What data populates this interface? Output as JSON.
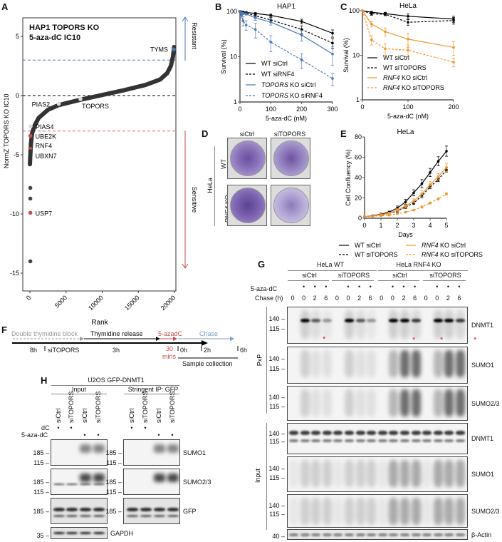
{
  "panels": {
    "A": "A",
    "B": "B",
    "C": "C",
    "D": "D",
    "E": "E",
    "F": "F",
    "G": "G",
    "H": "H"
  },
  "chart_data": [
    {
      "id": "A",
      "type": "scatter",
      "title_line1": "HAP1 TOPORS KO",
      "title_line1_italic": "TOPORS",
      "title_line2": "5-aza-dC IC10",
      "xlabel": "Rank",
      "ylabel": "NormZ TOPORS KO IC10",
      "xlim": [
        0,
        20000
      ],
      "ylim": [
        -16,
        6.5
      ],
      "xticks": [
        "0",
        "5000",
        "10000",
        "15000",
        "20000"
      ],
      "yticks": [
        "5",
        "0",
        "-5",
        "-10",
        "-15"
      ],
      "thresholds": {
        "resistant": 3,
        "sensitive": -3,
        "zero": 0
      },
      "arrows": {
        "resistant": "Resistant",
        "sensitive": "Sensitive"
      },
      "curve": [
        [
          0,
          -5.8
        ],
        [
          60,
          -5
        ],
        [
          150,
          -4
        ],
        [
          300,
          -3.2
        ],
        [
          600,
          -2.6
        ],
        [
          1200,
          -1.9
        ],
        [
          2500,
          -1.2
        ],
        [
          4000,
          -0.8
        ],
        [
          7000,
          -0.35
        ],
        [
          10000,
          0.05
        ],
        [
          13000,
          0.45
        ],
        [
          16000,
          0.9
        ],
        [
          18000,
          1.35
        ],
        [
          19000,
          1.9
        ],
        [
          19500,
          2.5
        ],
        [
          19800,
          3.3
        ],
        [
          19950,
          4.1
        ]
      ],
      "outliers": [
        [
          60,
          -7.8
        ],
        [
          60,
          -8.7
        ],
        [
          60,
          -14.0
        ]
      ],
      "labeled_genes": [
        {
          "gene": "TYMS",
          "rank": 19900,
          "value": 3.9,
          "color": "#4a78b5"
        },
        {
          "gene": "PIAS2",
          "rank": 4000,
          "value": -0.7,
          "color": "#dddddd"
        },
        {
          "gene": "TOPORS",
          "rank": 7000,
          "value": -0.3,
          "color": "#dddddd"
        },
        {
          "gene": "PIAS4",
          "rank": 100,
          "value": -2.6,
          "color": "#dddddd"
        },
        {
          "gene": "UBE2K",
          "rank": 60,
          "value": -3.4,
          "color": "#c0504d"
        },
        {
          "gene": "RNF4",
          "rank": 60,
          "value": -4.5,
          "color": "#c0504d"
        },
        {
          "gene": "UBXN7",
          "rank": 60,
          "value": -4.7,
          "color": "#333333"
        },
        {
          "gene": "USP7",
          "rank": 60,
          "value": -9.9,
          "color": "#c0504d"
        }
      ]
    },
    {
      "id": "B",
      "type": "line",
      "title": "HAP1",
      "xlabel": "5-aza-dC (nM)",
      "ylabel": "Survival (%)",
      "yscale": "log",
      "xlim": [
        0,
        300
      ],
      "ylim": [
        1,
        100
      ],
      "xticks": [
        "0",
        "100",
        "200",
        "300"
      ],
      "yticks": [
        "100",
        "10",
        "1"
      ],
      "x": [
        0,
        5,
        10,
        20,
        50,
        100,
        200,
        300
      ],
      "series": [
        {
          "name": "WT siCtrl",
          "color": "#000000",
          "dashed": false,
          "values": [
            100,
            98,
            97,
            95,
            90,
            82,
            60,
            33
          ],
          "err": [
            2,
            2,
            3,
            3,
            4,
            5,
            7,
            6
          ]
        },
        {
          "name": "WT siRNF4",
          "color": "#000000",
          "dashed": true,
          "values": [
            100,
            96,
            94,
            92,
            80,
            65,
            40,
            20
          ],
          "err": [
            2,
            3,
            3,
            4,
            6,
            8,
            8,
            5
          ]
        },
        {
          "name": "TOPORS KO siCtrl",
          "italic": "TOPORS",
          "color": "#4a78b5",
          "dashed": false,
          "values": [
            100,
            93,
            90,
            88,
            72,
            58,
            30,
            11.5
          ],
          "err": [
            3,
            4,
            5,
            5,
            8,
            8,
            8,
            5
          ]
        },
        {
          "name": "TOPORS KO siRNF4",
          "italic": "TOPORS",
          "color": "#4a78b5",
          "dashed": true,
          "values": [
            100,
            82,
            62,
            50,
            40,
            21,
            8.5,
            3.3
          ],
          "err": [
            4,
            10,
            14,
            12,
            14,
            8,
            3,
            1
          ]
        }
      ]
    },
    {
      "id": "C",
      "type": "line",
      "title": "HeLa",
      "xlabel": "5-aza-dC (nM)",
      "ylabel": "Survival (%)",
      "yscale": "log",
      "xlim": [
        0,
        200
      ],
      "ylim": [
        1,
        100
      ],
      "xticks": [
        "0",
        "100",
        "200"
      ],
      "yticks": [
        "100",
        "10",
        "1"
      ],
      "x": [
        0,
        20,
        50,
        100,
        200
      ],
      "series": [
        {
          "name": "WT siCtrl",
          "color": "#000000",
          "dashed": false,
          "values": [
            100,
            92,
            86,
            75,
            65
          ],
          "err": [
            2,
            5,
            6,
            10,
            10
          ]
        },
        {
          "name": "WT siTOPORS",
          "color": "#000000",
          "dashed": true,
          "values": [
            100,
            85,
            83,
            55,
            60
          ],
          "err": [
            2,
            6,
            6,
            8,
            10
          ]
        },
        {
          "name": "RNF4 KO siCtrl",
          "italic": "RNF4",
          "color": "#f0962e",
          "dashed": false,
          "values": [
            100,
            50,
            34,
            23,
            15
          ],
          "err": [
            2,
            7,
            7,
            8,
            5
          ]
        },
        {
          "name": "RNF4 KO siTOPORS",
          "italic": "RNF4",
          "color": "#f0962e",
          "dashed": true,
          "values": [
            100,
            22,
            14,
            13,
            7
          ],
          "err": [
            2,
            5,
            4,
            4,
            1.5
          ]
        }
      ]
    },
    {
      "id": "E",
      "type": "line",
      "title": "HeLa",
      "xlabel": "Days",
      "ylabel": "Cell Confluency (%)",
      "xlim": [
        0,
        5
      ],
      "ylim": [
        0,
        80
      ],
      "xticks": [
        "0",
        "1",
        "2",
        "3",
        "4",
        "5"
      ],
      "yticks": [
        "0",
        "20",
        "40",
        "60",
        "80"
      ],
      "x": [
        0,
        0.5,
        1,
        1.5,
        2,
        2.5,
        3,
        3.5,
        4,
        4.5,
        5
      ],
      "series": [
        {
          "name": "WT siCtrl",
          "color": "#000000",
          "dashed": false,
          "values": [
            1.5,
            2.5,
            4,
            6,
            10,
            16,
            25,
            34,
            45,
            56,
            66
          ],
          "err": [
            0.5,
            0.5,
            1,
            1,
            2,
            2.5,
            3,
            4,
            4,
            4.5,
            5
          ]
        },
        {
          "name": "WT siTOPORS",
          "color": "#000000",
          "dashed": true,
          "values": [
            1.5,
            2,
            3,
            5,
            7,
            11,
            15,
            22,
            31,
            38,
            47.5
          ],
          "err": [
            0.5,
            0.5,
            0.5,
            1,
            1,
            1.5,
            1.5,
            2,
            2,
            2,
            2
          ]
        },
        {
          "name": "RNF4 KO siCtrl",
          "italic": "RNF4",
          "color": "#f0962e",
          "dashed": false,
          "values": [
            1.5,
            2.2,
            3.5,
            5,
            8,
            12,
            17,
            24,
            33,
            41,
            50
          ],
          "err": [
            0.5,
            0.5,
            1,
            1,
            1.5,
            2,
            2,
            3,
            3,
            3,
            4
          ]
        },
        {
          "name": "RNF4 KO siTOPORS",
          "italic": "RNF4",
          "color": "#f0962e",
          "dashed": true,
          "values": [
            1.5,
            2,
            2.5,
            3,
            4.5,
            6,
            8,
            11,
            15,
            19,
            24
          ],
          "err": [
            0.3,
            0.3,
            0.5,
            0.5,
            0.5,
            0.5,
            0.5,
            1,
            1,
            1,
            1
          ]
        }
      ]
    }
  ],
  "D": {
    "cols": [
      "siCtrl",
      "siTOPORS"
    ],
    "cell_line": "HeLa",
    "rows": [
      "WT",
      "RNF4 KO"
    ]
  },
  "F": {
    "steps": [
      {
        "label": "Double thymidine block",
        "color": "#999999"
      },
      {
        "label": "Thymidine release",
        "color": "#000000"
      },
      {
        "label": "5-azadC",
        "color": "#c0504d"
      },
      {
        "label": "Chase",
        "color": "#7a9cc6"
      }
    ],
    "below": {
      "d1": "8h",
      "si": "siTOPORS",
      "d2": "3h",
      "d3a": "30",
      "d3b": "mins",
      "t0": "0h",
      "t2": "2h",
      "t6": "6h",
      "collection": "Sample collection"
    }
  },
  "G": {
    "groups": [
      "HeLa WT",
      "HeLa RNF4 KO"
    ],
    "subgroups": [
      "siCtrl",
      "siTOPORS",
      "siCtrl",
      "siTOPORS"
    ],
    "row1_label": "5-aza-dC",
    "row2_label": "Chase (h)",
    "chase": [
      "0",
      "0",
      "2",
      "6",
      "0",
      "0",
      "2",
      "6",
      "0",
      "0",
      "2",
      "6",
      "0",
      "0",
      "2",
      "6"
    ],
    "aza": [
      false,
      true,
      true,
      true,
      false,
      true,
      true,
      true,
      false,
      true,
      true,
      true,
      false,
      true,
      true,
      true
    ],
    "section_pxp": "PxP",
    "section_input": "Input",
    "blots": [
      {
        "label": "DNMT1",
        "mw": [
          "140",
          "115"
        ]
      },
      {
        "label": "SUMO1",
        "mw": [
          "140",
          "115"
        ]
      },
      {
        "label": "SUMO2/3",
        "mw": [
          "140",
          "115"
        ]
      },
      {
        "label": "DNMT1",
        "mw": [
          "140",
          "115"
        ]
      },
      {
        "label": "SUMO1",
        "mw": [
          "140",
          "115"
        ]
      },
      {
        "label": "SUMO2/3",
        "mw": [
          "140",
          "115"
        ]
      },
      {
        "label": "β-Actin",
        "mw": [
          "40"
        ]
      }
    ],
    "asterisk": "*"
  },
  "H": {
    "title": "U2OS GFP-DNMT1",
    "sections": [
      "Input",
      "Stringent IP: GFP"
    ],
    "lanes": [
      "siCtrl",
      "siTOPORS",
      "siCtrl",
      "siTOPORS"
    ],
    "row1_label": "dC",
    "row2_label": "5-aza-dC",
    "blots": [
      {
        "label": "SUMO1",
        "mw": [
          "185",
          "115"
        ]
      },
      {
        "label": "SUMO2/3",
        "mw": [
          "185",
          "115"
        ]
      },
      {
        "label": "GFP",
        "mw": [
          "185"
        ]
      },
      {
        "label": "GAPDH",
        "mw": [
          "35"
        ]
      }
    ]
  }
}
